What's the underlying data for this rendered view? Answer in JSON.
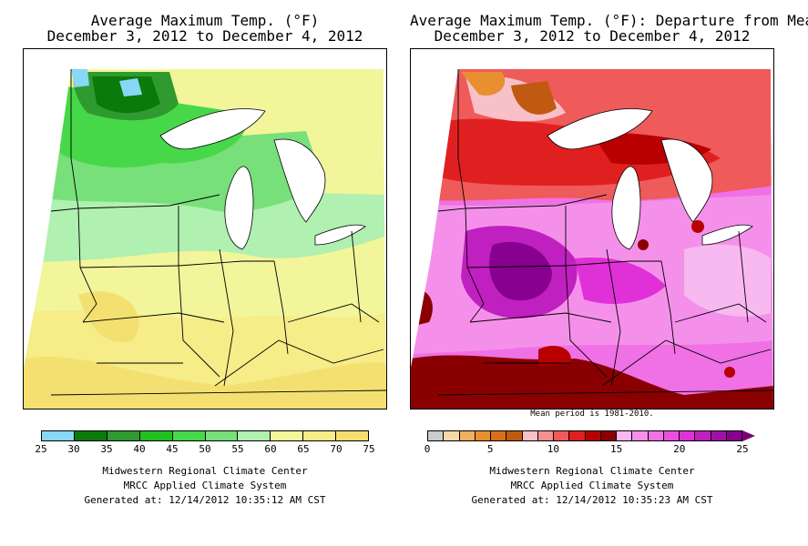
{
  "left": {
    "title_line1": "Average Maximum Temp. (°F)",
    "title_line2": "December 3, 2012 to December 4, 2012",
    "legend": {
      "ticks": [
        "25",
        "30",
        "35",
        "40",
        "45",
        "50",
        "55",
        "60",
        "65",
        "70",
        "75"
      ],
      "colors": [
        "#87d8f5",
        "#0a7a0a",
        "#2f9a2f",
        "#20c020",
        "#47d84a",
        "#78e07a",
        "#b0f0b0",
        "#f2f59a",
        "#f6ec88",
        "#f4e070"
      ]
    },
    "footer": {
      "line1": "Midwestern Regional Climate Center",
      "line2": "MRCC Applied Climate System",
      "line3": "Generated at: 12/14/2012 10:35:12 AM CST"
    }
  },
  "right": {
    "title_line1": "Average Maximum Temp. (°F): Departure from Mean",
    "title_line2": "December 3, 2012 to December 4, 2012",
    "note": "Mean period is 1981-2010.",
    "legend": {
      "ticks": [
        "0",
        "5",
        "10",
        "15",
        "20",
        "25"
      ],
      "colors": [
        "#cccccc",
        "#f5d8a8",
        "#f0b060",
        "#e89030",
        "#d87018",
        "#c05a10",
        "#f8c0c8",
        "#f59090",
        "#ef5a5a",
        "#e02020",
        "#b80000",
        "#8a0000",
        "#f8b8f0",
        "#f590ea",
        "#f070e6",
        "#ea50e0",
        "#e030d8",
        "#c020c0",
        "#a010a8",
        "#880090"
      ]
    },
    "footer": {
      "line1": "Midwestern Regional Climate Center",
      "line2": "MRCC Applied Climate System",
      "line3": "Generated at: 12/14/2012 10:35:23 AM CST"
    }
  }
}
